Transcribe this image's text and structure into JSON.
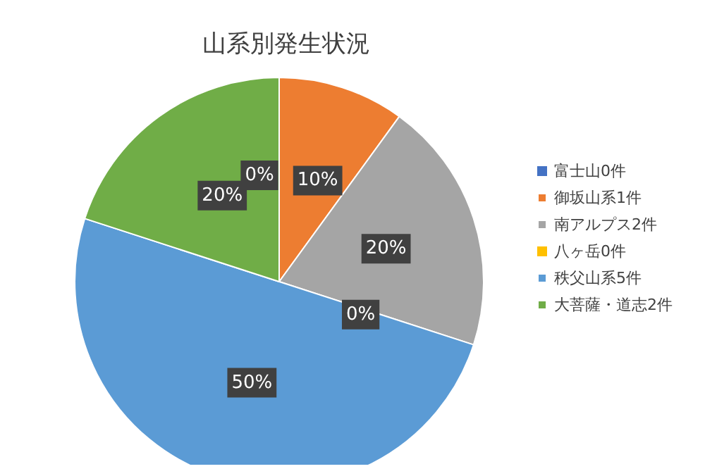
{
  "chart_data": {
    "type": "pie",
    "title": "山系別発生状況",
    "categories": [
      "富士山0件",
      "御坂山系1件",
      "南アルプス2件",
      "八ヶ岳0件",
      "秩父山系5件",
      "大菩薩・道志2件"
    ],
    "values": [
      0,
      10,
      20,
      0,
      50,
      20
    ],
    "colors": [
      "#4472c4",
      "#ed7d31",
      "#a5a5a5",
      "#ffc000",
      "#5b9bd5",
      "#70ad47"
    ],
    "value_labels": [
      "0%",
      "10%",
      "20%",
      "0%",
      "50%",
      "20%"
    ],
    "legend": "right"
  }
}
